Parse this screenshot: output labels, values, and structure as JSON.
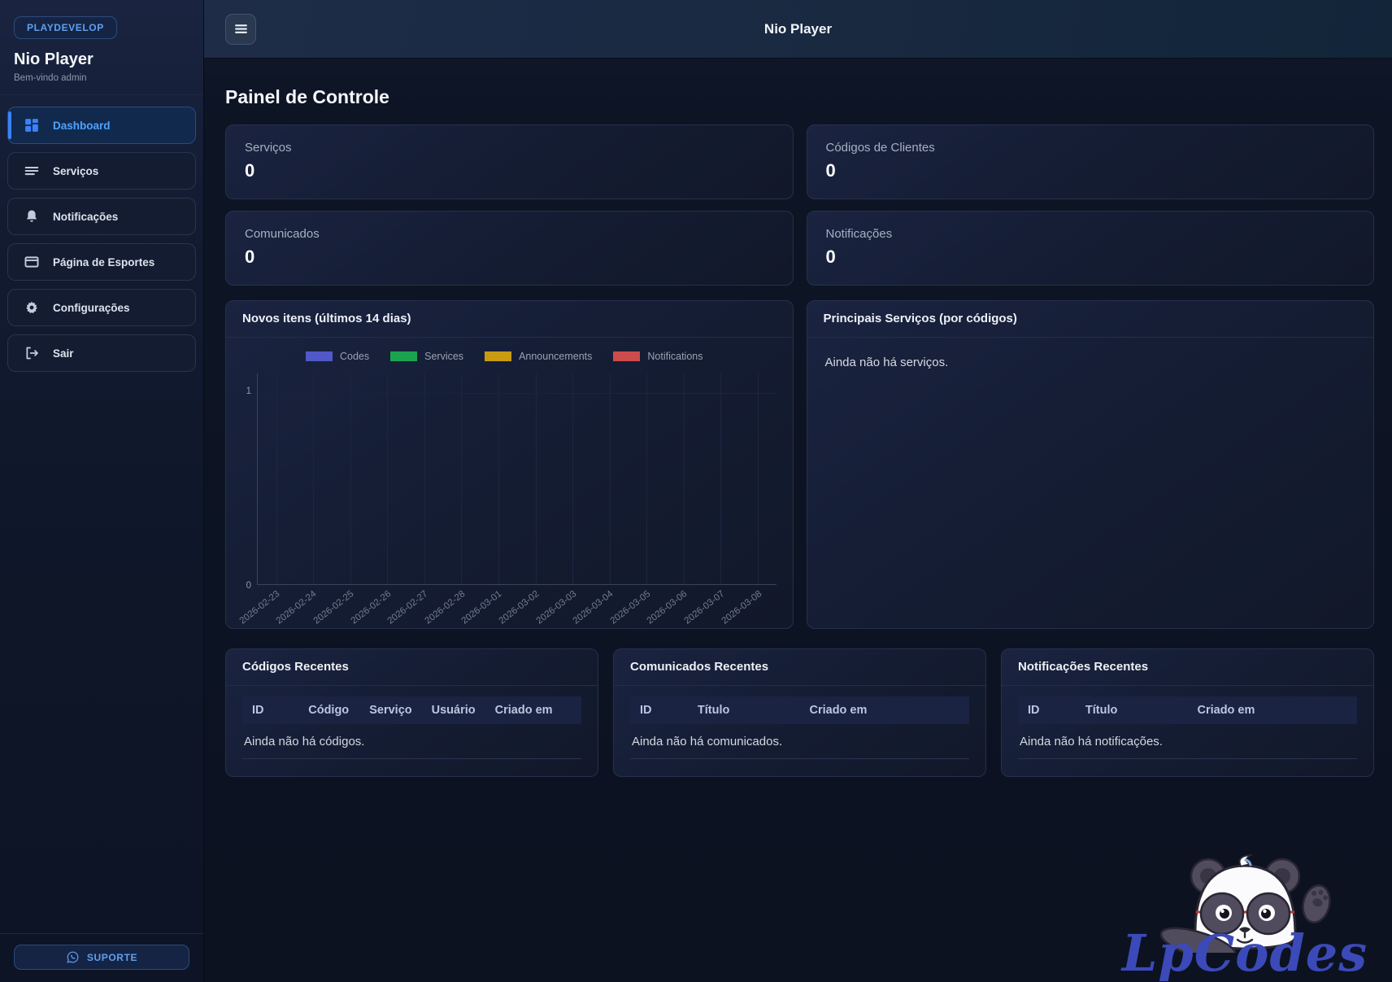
{
  "brand": {
    "badge": "PLAYDEVELOP",
    "title": "Nio Player",
    "welcome": "Bem-vindo admin",
    "support_label": "SUPORTE"
  },
  "header": {
    "title": "Nio Player"
  },
  "sidebar": {
    "items": [
      {
        "label": "Dashboard",
        "icon": "dashboard-grid-icon",
        "active": true
      },
      {
        "label": "Serviços",
        "icon": "list-icon",
        "active": false
      },
      {
        "label": "Notificações",
        "icon": "bell-icon",
        "active": false
      },
      {
        "label": "Página de Esportes",
        "icon": "browser-window-icon",
        "active": false
      },
      {
        "label": "Configurações",
        "icon": "gear-icon",
        "active": false
      },
      {
        "label": "Sair",
        "icon": "logout-icon",
        "active": false
      }
    ]
  },
  "page": {
    "title": "Painel de Controle"
  },
  "stats": [
    {
      "label": "Serviços",
      "value": "0"
    },
    {
      "label": "Códigos de Clientes",
      "value": "0"
    },
    {
      "label": "Comunicados",
      "value": "0"
    },
    {
      "label": "Notificações",
      "value": "0"
    }
  ],
  "chart_card": {
    "title": "Novos itens (últimos 14 dias)"
  },
  "chart_data": {
    "type": "bar",
    "title": "Novos itens (últimos 14 dias)",
    "categories": [
      "2026-02-23",
      "2026-02-24",
      "2026-02-25",
      "2026-02-26",
      "2026-02-27",
      "2026-02-28",
      "2026-03-01",
      "2026-03-02",
      "2026-03-03",
      "2026-03-04",
      "2026-03-05",
      "2026-03-06",
      "2026-03-07",
      "2026-03-08"
    ],
    "series": [
      {
        "name": "Codes",
        "color": "#5158c8",
        "values": [
          0,
          0,
          0,
          0,
          0,
          0,
          0,
          0,
          0,
          0,
          0,
          0,
          0,
          0
        ]
      },
      {
        "name": "Services",
        "color": "#1ca350",
        "values": [
          0,
          0,
          0,
          0,
          0,
          0,
          0,
          0,
          0,
          0,
          0,
          0,
          0,
          0
        ]
      },
      {
        "name": "Announcements",
        "color": "#c79c10",
        "values": [
          0,
          0,
          0,
          0,
          0,
          0,
          0,
          0,
          0,
          0,
          0,
          0,
          0,
          0
        ]
      },
      {
        "name": "Notifications",
        "color": "#cc4b4b",
        "values": [
          0,
          0,
          0,
          0,
          0,
          0,
          0,
          0,
          0,
          0,
          0,
          0,
          0,
          0
        ]
      }
    ],
    "xlabel": "",
    "ylabel": "",
    "ylim": [
      0,
      1
    ],
    "y_ticks": [
      0,
      1
    ],
    "grid": "vertical",
    "legend_position": "top"
  },
  "top_services": {
    "title": "Principais Serviços (por códigos)",
    "empty": "Ainda não há serviços."
  },
  "tables": [
    {
      "title": "Códigos Recentes",
      "columns": [
        "ID",
        "Código",
        "Serviço",
        "Usuário",
        "Criado em"
      ],
      "empty": "Ainda não há códigos."
    },
    {
      "title": "Comunicados Recentes",
      "columns": [
        "ID",
        "Título",
        "Criado em"
      ],
      "empty": "Ainda não há comunicados."
    },
    {
      "title": "Notificações Recentes",
      "columns": [
        "ID",
        "Título",
        "Criado em"
      ],
      "empty": "Ainda não há notificações."
    }
  ],
  "watermark": {
    "text": "LpCodes"
  },
  "colors": {
    "accent_blue": "#3b82f6",
    "link_blue": "#4da3ff",
    "badge_blue": "#5ea0f2",
    "sidebar_bg": "#121b31",
    "page_bg": "#0c1220",
    "card_bg": "#141c32",
    "card_border": "#27304d",
    "watermark_blue": "#3b4ab8"
  }
}
